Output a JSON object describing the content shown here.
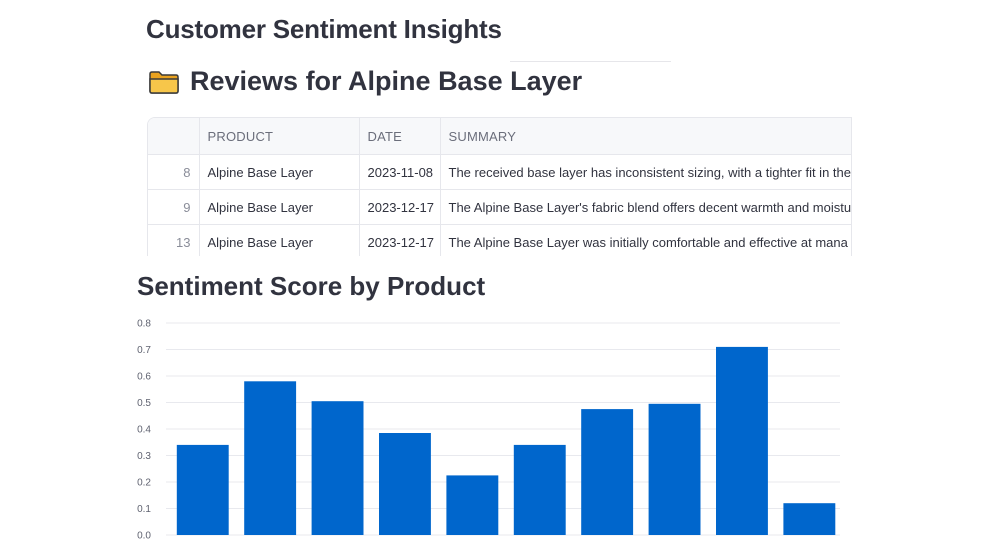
{
  "page": {
    "title": "Customer Sentiment Insights"
  },
  "section": {
    "heading": "Reviews for Alpine Base Layer",
    "icon": "folder-icon"
  },
  "table": {
    "columns": [
      "",
      "PRODUCT",
      "DATE",
      "SUMMARY"
    ],
    "rows": [
      {
        "index": "8",
        "product": "Alpine Base Layer",
        "date": "2023-11-08",
        "summary": "The received base layer has inconsistent sizing, with a tighter fit in the"
      },
      {
        "index": "9",
        "product": "Alpine Base Layer",
        "date": "2023-12-17",
        "summary": "The Alpine Base Layer's fabric blend offers decent warmth and moistu"
      },
      {
        "index": "13",
        "product": "Alpine Base Layer",
        "date": "2023-12-17",
        "summary": "The Alpine Base Layer was initially comfortable and effective at mana"
      }
    ]
  },
  "chart": {
    "title": "Sentiment Score by Product"
  },
  "chart_data": {
    "type": "bar",
    "values": [
      0.34,
      0.58,
      0.505,
      0.385,
      0.225,
      0.34,
      0.475,
      0.495,
      0.71,
      0.12
    ],
    "ylim": [
      0,
      0.8
    ],
    "yticks": [
      "0.0",
      "0.1",
      "0.2",
      "0.3",
      "0.4",
      "0.5",
      "0.6",
      "0.7",
      "0.8"
    ],
    "grid": true,
    "color": "#0066cc"
  }
}
